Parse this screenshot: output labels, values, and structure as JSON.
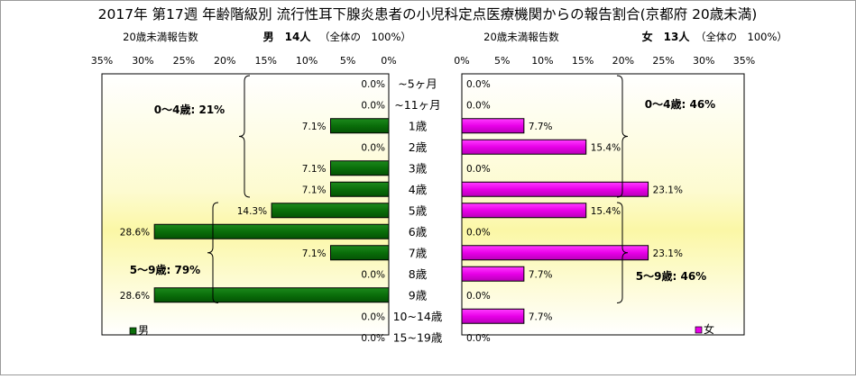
{
  "chart_data": {
    "type": "bar",
    "orientation": "horizontal-butterfly",
    "title": "2017年 第17週 年齢階級別 流行性耳下腺炎患者の小児科定点医療機関からの報告割合(京都府 20歳未満)",
    "categories": [
      "~5ヶ月",
      "~11ヶ月",
      "1歳",
      "2歳",
      "3歳",
      "4歳",
      "5歳",
      "6歳",
      "7歳",
      "8歳",
      "9歳",
      "10~14歳",
      "15~19歳"
    ],
    "xlim": [
      0,
      35
    ],
    "xticks": [
      0,
      5,
      10,
      15,
      20,
      25,
      30,
      35
    ],
    "tick_suffix": "%",
    "grid": false,
    "panels": [
      {
        "side": "left",
        "series_name": "男",
        "caption": "20歳未満報告数",
        "header": "男　14人",
        "header_note": "（全体の　100%）",
        "values": [
          0.0,
          0.0,
          7.1,
          0.0,
          7.1,
          7.1,
          14.3,
          28.6,
          7.1,
          0.0,
          28.6,
          0.0,
          0.0
        ],
        "value_labels": [
          "0.0%",
          "0.0%",
          "7.1%",
          "0.0%",
          "7.1%",
          "7.1%",
          "14.3%",
          "28.6%",
          "7.1%",
          "0.0%",
          "28.6%",
          "0.0%",
          "0.0%"
        ],
        "color": "#0a6e0a",
        "brackets": [
          {
            "label": "0～4歳: 21%",
            "from": 0,
            "to": 5
          },
          {
            "label": "5～9歳: 79%",
            "from": 6,
            "to": 10
          }
        ],
        "legend": "男"
      },
      {
        "side": "right",
        "series_name": "女",
        "caption": "20歳未満報告数",
        "header": "女　13人",
        "header_note": "（全体の　100%）",
        "values": [
          0.0,
          0.0,
          7.7,
          15.4,
          0.0,
          23.1,
          15.4,
          0.0,
          23.1,
          7.7,
          0.0,
          7.7,
          0.0
        ],
        "value_labels": [
          "0.0%",
          "0.0%",
          "7.7%",
          "15.4%",
          "0.0%",
          "23.1%",
          "15.4%",
          "0.0%",
          "23.1%",
          "7.7%",
          "0.0%",
          "7.7%",
          "0.0%"
        ],
        "color": "#e800e8",
        "brackets": [
          {
            "label": "0～4歳: 46%",
            "from": 0,
            "to": 5
          },
          {
            "label": "5～9歳: 46%",
            "from": 6,
            "to": 10
          }
        ],
        "legend": "女"
      }
    ]
  }
}
